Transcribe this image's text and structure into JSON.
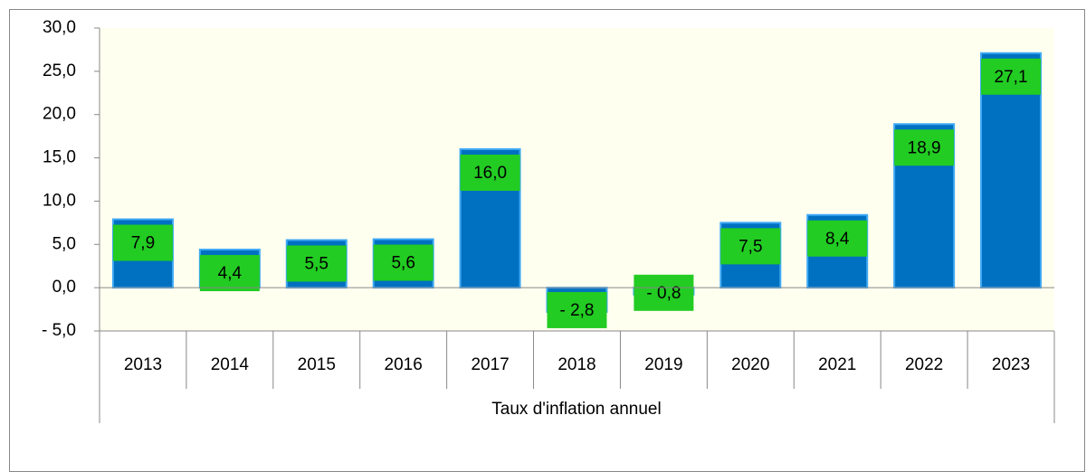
{
  "chart_data": {
    "type": "bar",
    "xlabel": "Taux d'inflation annuel",
    "categories": [
      "2013",
      "2014",
      "2015",
      "2016",
      "2017",
      "2018",
      "2019",
      "2020",
      "2021",
      "2022",
      "2023"
    ],
    "values": [
      7.9,
      4.4,
      5.5,
      5.6,
      16.0,
      -2.8,
      -0.8,
      7.5,
      8.4,
      18.9,
      27.1
    ],
    "value_labels": [
      "7,9",
      "4,4",
      "5,5",
      "5,6",
      "16,0",
      "- 2,8",
      "- 0,8",
      "7,5",
      "8,4",
      "18,9",
      "27,1"
    ],
    "color": "#0070c0",
    "label_color": "#22cc22",
    "ylim": [
      -5,
      30
    ],
    "yticks": [
      {
        "value": -5,
        "label": "- 5,0"
      },
      {
        "value": 0,
        "label": "0,0"
      },
      {
        "value": 5,
        "label": "5,0"
      },
      {
        "value": 10,
        "label": "10,0"
      },
      {
        "value": 15,
        "label": "15,0"
      },
      {
        "value": 20,
        "label": "20,0"
      },
      {
        "value": 25,
        "label": "25,0"
      },
      {
        "value": 30,
        "label": "30,0"
      }
    ]
  }
}
